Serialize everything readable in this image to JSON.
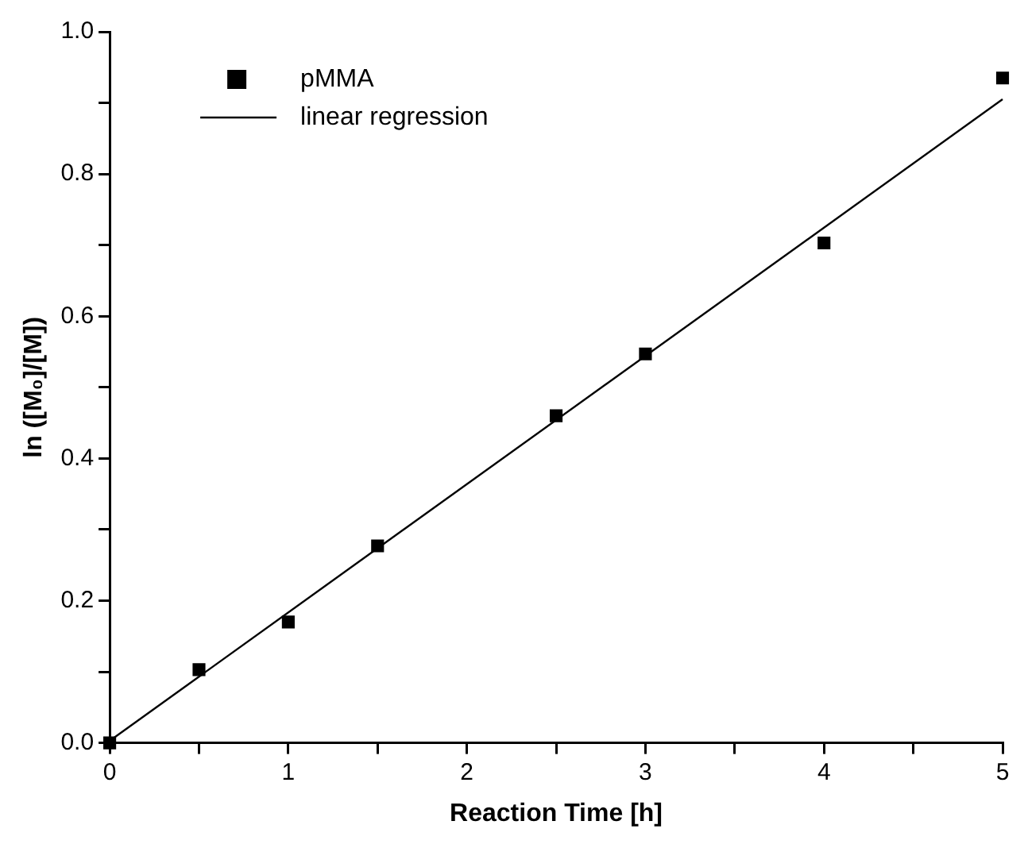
{
  "chart_data": {
    "type": "scatter",
    "xlabel": "Reaction Time [h]",
    "ylabel": "ln ([M₀]/[M])",
    "xlim": [
      0,
      5
    ],
    "ylim": [
      0,
      1
    ],
    "xticks": [
      0,
      {
        "value": 0.5,
        "label": null
      },
      1,
      {
        "value": 1.5,
        "label": null
      },
      2,
      {
        "value": 2.5,
        "label": null
      },
      3,
      {
        "value": 3.5,
        "label": null
      },
      4,
      {
        "value": 4.5,
        "label": null
      },
      5
    ],
    "yticks": [
      {
        "value": 0,
        "label": "0.0"
      },
      {
        "value": 0.1,
        "label": null
      },
      {
        "value": 0.2,
        "label": "0.2"
      },
      {
        "value": 0.3,
        "label": null
      },
      {
        "value": 0.4,
        "label": "0.4"
      },
      {
        "value": 0.5,
        "label": null
      },
      {
        "value": 0.6,
        "label": "0.6"
      },
      {
        "value": 0.7,
        "label": null
      },
      {
        "value": 0.8,
        "label": "0.8"
      },
      {
        "value": 0.9,
        "label": null
      },
      {
        "value": 1.0,
        "label": "1.0"
      }
    ],
    "grid": false,
    "legend": "top left",
    "series": [
      {
        "name": "pMMA",
        "type": "scatter",
        "marker": "square",
        "color": "#000000",
        "x": [
          0,
          0.5,
          1,
          1.5,
          2.5,
          3,
          4,
          5
        ],
        "values": [
          0,
          0.103,
          0.17,
          0.277,
          0.46,
          0.547,
          0.703,
          0.935
        ]
      },
      {
        "name": "linear regression",
        "type": "line",
        "marker": "none",
        "color": "#000000",
        "x": [
          0,
          5
        ],
        "values": [
          0.003,
          0.905
        ]
      }
    ]
  }
}
